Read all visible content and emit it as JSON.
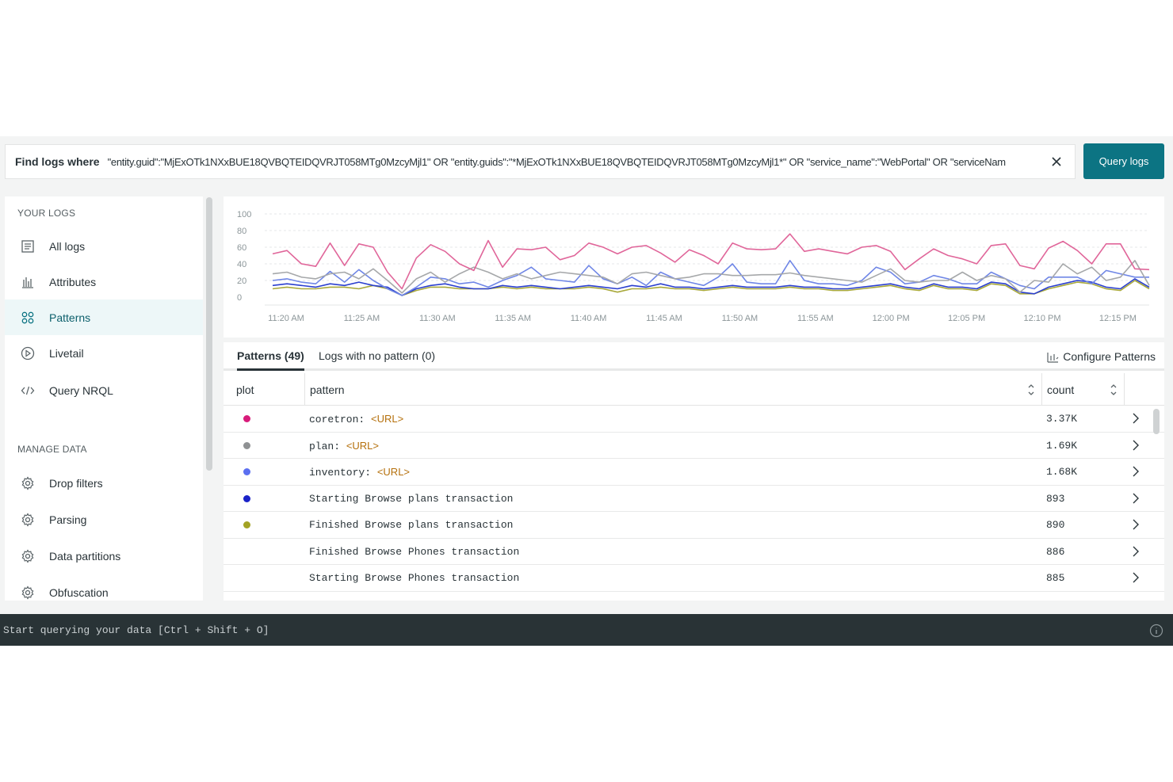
{
  "search": {
    "label": "Find logs where",
    "query": "\"entity.guid\":\"MjExOTk1NXxBUE18QVBQTEIDQVRJT058MTg0MzcyMjl1\" OR \"entity.guids\":\"*MjExOTk1NXxBUE18QVBQTEIDQVRJT058MTg0MzcyMjl1*\" OR \"service_name\":\"WebPortal\" OR \"serviceNam",
    "button": "Query logs"
  },
  "sidebar": {
    "your_logs_title": "YOUR LOGS",
    "manage_title": "MANAGE DATA",
    "items": [
      {
        "label": "All logs",
        "icon": "list-icon"
      },
      {
        "label": "Attributes",
        "icon": "bar-chart-icon"
      },
      {
        "label": "Patterns",
        "icon": "patterns-icon",
        "active": true
      },
      {
        "label": "Livetail",
        "icon": "play-icon"
      },
      {
        "label": "Query NRQL",
        "icon": "code-icon"
      }
    ],
    "manage_items": [
      {
        "label": "Drop filters",
        "icon": "gear-icon"
      },
      {
        "label": "Parsing",
        "icon": "gear-icon"
      },
      {
        "label": "Data partitions",
        "icon": "gear-icon"
      },
      {
        "label": "Obfuscation",
        "icon": "gear-icon"
      }
    ]
  },
  "chart_data": {
    "type": "line",
    "title": "",
    "xlabel": "",
    "ylabel": "",
    "ylim": [
      0,
      100
    ],
    "yticks": [
      "100",
      "80",
      "60",
      "40",
      "20",
      "0"
    ],
    "xticks": [
      "11:20 AM",
      "11:25 AM",
      "11:30 AM",
      "11:35 AM",
      "11:40 AM",
      "11:45 AM",
      "11:50 AM",
      "11:55 AM",
      "12:00 PM",
      "12:05 PM",
      "12:10 PM",
      "12:15 PM"
    ],
    "series": [
      {
        "color": "#e0669a",
        "values": [
          52,
          56,
          40,
          37,
          65,
          38,
          64,
          60,
          30,
          10,
          47,
          63,
          55,
          40,
          32,
          68,
          36,
          58,
          57,
          60,
          45,
          50,
          65,
          60,
          52,
          60,
          62,
          53,
          42,
          57,
          50,
          40,
          65,
          58,
          57,
          58,
          76,
          55,
          58,
          55,
          52,
          60,
          62,
          55,
          33,
          46,
          58,
          50,
          46,
          40,
          62,
          64,
          38,
          34,
          59,
          67,
          56,
          40,
          64,
          64,
          34,
          33
        ]
      },
      {
        "color": "#a6a8aa",
        "values": [
          28,
          30,
          24,
          22,
          28,
          30,
          22,
          34,
          20,
          5,
          22,
          30,
          18,
          28,
          36,
          30,
          22,
          28,
          22,
          26,
          30,
          28,
          26,
          24,
          16,
          28,
          30,
          26,
          22,
          24,
          28,
          28,
          26,
          26,
          27,
          27,
          29,
          26,
          24,
          22,
          20,
          18,
          26,
          34,
          20,
          18,
          20,
          20,
          30,
          20,
          26,
          22,
          6,
          20,
          18,
          40,
          28,
          36,
          20,
          24,
          44,
          14
        ]
      },
      {
        "color": "#6f86e6",
        "values": [
          20,
          22,
          18,
          16,
          31,
          18,
          33,
          20,
          10,
          2,
          12,
          24,
          22,
          16,
          18,
          12,
          20,
          26,
          36,
          22,
          20,
          18,
          38,
          22,
          16,
          24,
          14,
          30,
          22,
          18,
          14,
          24,
          40,
          18,
          16,
          16,
          44,
          20,
          16,
          16,
          14,
          20,
          36,
          30,
          16,
          18,
          26,
          22,
          16,
          16,
          30,
          22,
          14,
          10,
          24,
          24,
          24,
          16,
          32,
          28,
          24,
          24
        ]
      },
      {
        "color": "#2b3fcf",
        "values": [
          14,
          16,
          14,
          12,
          16,
          14,
          18,
          14,
          12,
          2,
          10,
          14,
          16,
          12,
          10,
          10,
          14,
          12,
          14,
          12,
          10,
          12,
          14,
          12,
          10,
          14,
          12,
          16,
          12,
          12,
          10,
          12,
          14,
          12,
          12,
          12,
          14,
          12,
          12,
          10,
          10,
          12,
          14,
          16,
          12,
          10,
          16,
          12,
          12,
          10,
          18,
          16,
          6,
          4,
          12,
          16,
          20,
          18,
          12,
          10,
          22,
          12
        ]
      },
      {
        "color": "#a8a83a",
        "values": [
          10,
          12,
          10,
          10,
          12,
          12,
          10,
          14,
          10,
          2,
          8,
          12,
          12,
          10,
          10,
          10,
          12,
          10,
          12,
          10,
          10,
          10,
          12,
          10,
          6,
          10,
          10,
          12,
          10,
          10,
          8,
          10,
          12,
          10,
          10,
          10,
          12,
          10,
          10,
          8,
          8,
          10,
          12,
          14,
          10,
          8,
          14,
          10,
          10,
          8,
          16,
          14,
          4,
          4,
          10,
          14,
          18,
          16,
          10,
          8,
          20,
          10
        ]
      }
    ]
  },
  "patterns": {
    "tab_patterns": "Patterns (49)",
    "tab_no_pattern": "Logs with no pattern (0)",
    "configure": "Configure Patterns",
    "col_plot": "plot",
    "col_pattern": "pattern",
    "col_count": "count",
    "rows": [
      {
        "pattern": "coretron: ",
        "url": "<URL>",
        "count": "3.37K",
        "color": "#d81b7a"
      },
      {
        "pattern": "plan: ",
        "url": "<URL>",
        "count": "1.69K",
        "color": "#8f9193"
      },
      {
        "pattern": "inventory: ",
        "url": "<URL>",
        "count": "1.68K",
        "color": "#5b6ff0"
      },
      {
        "pattern": "Starting Browse plans transaction",
        "url": "",
        "count": "893",
        "color": "#1a22c8"
      },
      {
        "pattern": "Finished Browse plans transaction",
        "url": "",
        "count": "890",
        "color": "#a3a324"
      },
      {
        "pattern": "Finished Browse Phones transaction",
        "url": "",
        "count": "886",
        "color": ""
      },
      {
        "pattern": "Starting Browse Phones transaction",
        "url": "",
        "count": "885",
        "color": ""
      }
    ]
  },
  "bottombar": {
    "text": "Start querying your data [Ctrl + Shift + O]"
  }
}
